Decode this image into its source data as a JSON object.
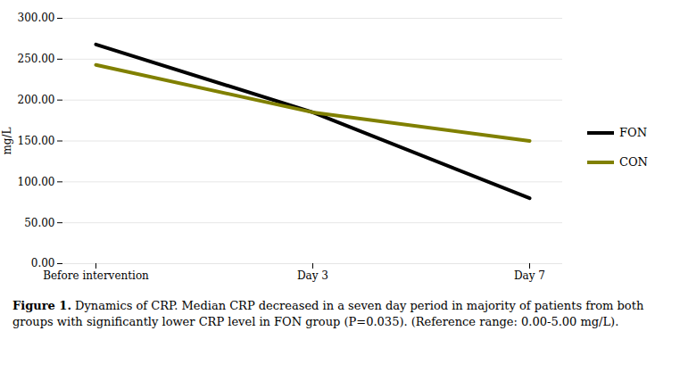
{
  "chart_data": {
    "type": "line",
    "categories": [
      "Before intervention",
      "Day 3",
      "Day 7"
    ],
    "series": [
      {
        "name": "FON",
        "color": "#000000",
        "values": [
          268,
          185,
          80
        ]
      },
      {
        "name": "CON",
        "color": "#808000",
        "values": [
          243,
          185,
          150
        ]
      }
    ],
    "ylabel": "mg/L",
    "ylim": [
      0,
      300
    ],
    "yticks": [
      {
        "value": 0,
        "label": "0.00"
      },
      {
        "value": 50,
        "label": "50.00"
      },
      {
        "value": 100,
        "label": "100.00"
      },
      {
        "value": 150,
        "label": "150.00"
      },
      {
        "value": 200,
        "label": "200.00"
      },
      {
        "value": 250,
        "label": "250.00"
      },
      {
        "value": 300,
        "label": "300.00"
      }
    ],
    "grid": true,
    "legend": "right",
    "caption": "Figure 1. Dynamics of CRP. Median CRP decreased in a seven day period in majority of patients from both groups with significantly lower CRP level in FON group (P=0.035). (Reference range: 0.00-5.00 mg/L)."
  }
}
